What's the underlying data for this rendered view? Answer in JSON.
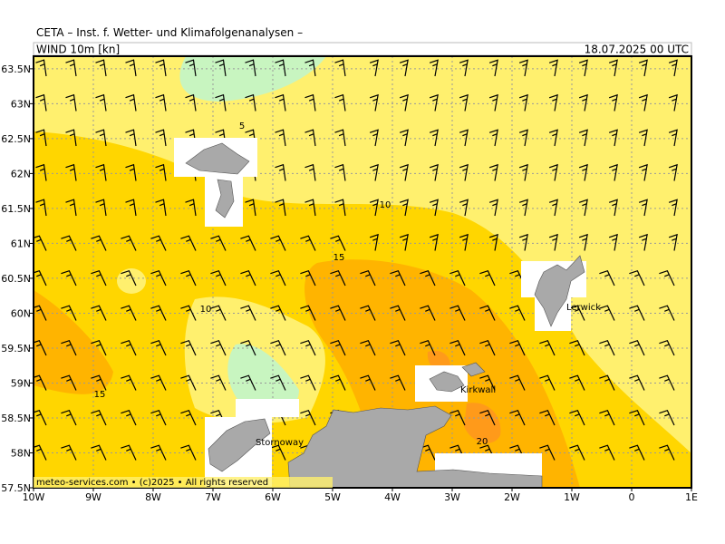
{
  "header": {
    "title": "CETA  –  Inst. f. Wetter- und Klimafolgenanalysen  –",
    "field": "WIND 10m [kn]",
    "valid": "18.07.2025 00 UTC"
  },
  "map": {
    "lon_range": [
      -10,
      1
    ],
    "lat_range": [
      57.5,
      63.68
    ],
    "lon_ticks": [
      {
        "value": -10,
        "label": "10W"
      },
      {
        "value": -9,
        "label": "9W"
      },
      {
        "value": -8,
        "label": "8W"
      },
      {
        "value": -7,
        "label": "7W"
      },
      {
        "value": -6,
        "label": "6W"
      },
      {
        "value": -5,
        "label": "5W"
      },
      {
        "value": -4,
        "label": "4W"
      },
      {
        "value": -3,
        "label": "3W"
      },
      {
        "value": -2,
        "label": "2W"
      },
      {
        "value": -1,
        "label": "1W"
      },
      {
        "value": 0,
        "label": "0"
      },
      {
        "value": 1,
        "label": "1E"
      }
    ],
    "lat_ticks": [
      {
        "value": 57.5,
        "label": "57.5N"
      },
      {
        "value": 58,
        "label": "58N"
      },
      {
        "value": 58.5,
        "label": "58.5N"
      },
      {
        "value": 59,
        "label": "59N"
      },
      {
        "value": 59.5,
        "label": "59.5N"
      },
      {
        "value": 60,
        "label": "60N"
      },
      {
        "value": 60.5,
        "label": "60.5N"
      },
      {
        "value": 61,
        "label": "61N"
      },
      {
        "value": 61.5,
        "label": "61.5N"
      },
      {
        "value": 62,
        "label": "62N"
      },
      {
        "value": 62.5,
        "label": "62.5N"
      },
      {
        "value": 63,
        "label": "63N"
      },
      {
        "value": 63.5,
        "label": "63.5N"
      }
    ],
    "contour_labels": [
      5,
      10,
      15,
      10,
      15,
      20
    ],
    "places": [
      "Lerwick",
      "Kirkwall",
      "Stornoway"
    ],
    "footer": "meteo-services.com • (c)2025 • All rights reserved"
  }
}
